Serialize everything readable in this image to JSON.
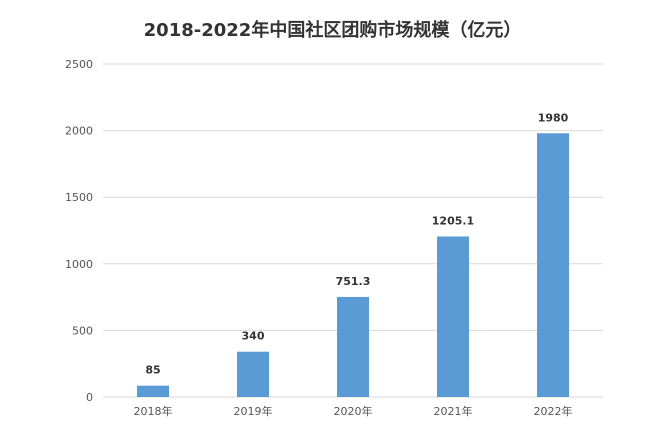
{
  "chart_data": {
    "type": "bar",
    "title": "2018-2022年中国社区团购市场规模（亿元）",
    "categories": [
      "2018年",
      "2019年",
      "2020年",
      "2021年",
      "2022年"
    ],
    "values": [
      85,
      340,
      751.3,
      1205.1,
      1980
    ],
    "data_labels": [
      "85",
      "340",
      "751.3",
      "1205.1",
      "1980"
    ],
    "ylim": [
      0,
      2500
    ],
    "yticks": [
      0,
      500,
      1000,
      1500,
      2000,
      2500
    ],
    "grid": true,
    "legend": "none",
    "bar_color": "#5b9bd5",
    "grid_color": "#d9d9d9"
  }
}
